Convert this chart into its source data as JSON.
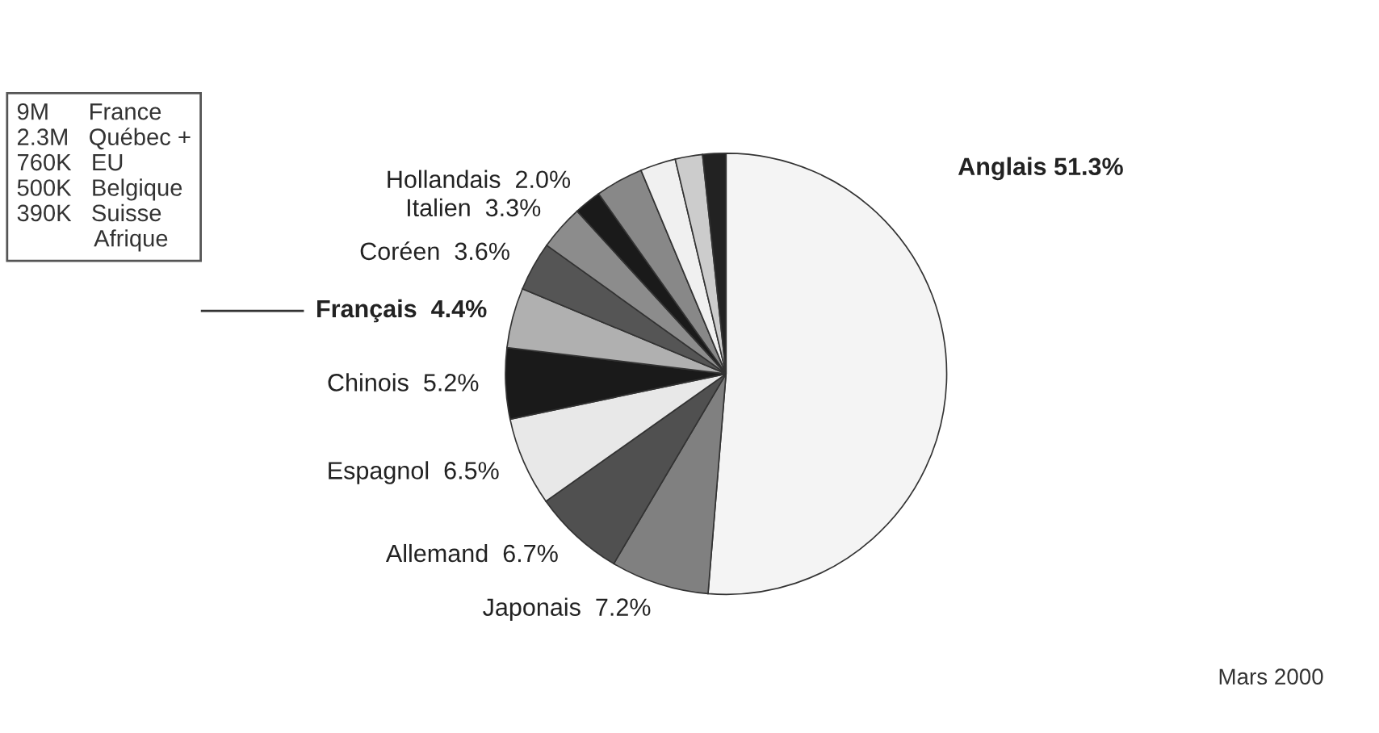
{
  "chart_data": {
    "type": "pie",
    "categories": [
      "Anglais 51.3%",
      "Japonais  7.2%",
      "Allemand  6.7%",
      "Espagnol  6.5%",
      "Chinois  5.2%",
      "Français  4.4%",
      "Coréen  3.6%",
      "Italien  3.3%",
      "Hollandais  2.0%",
      null,
      null,
      null,
      null
    ],
    "values": [
      51.3,
      7.2,
      6.7,
      6.5,
      5.2,
      4.4,
      3.6,
      3.3,
      2.0,
      3.5,
      2.6,
      2.0,
      1.7
    ],
    "colors": [
      "#f4f4f4",
      "#808080",
      "#505050",
      "#e8e8e8",
      "#1a1a1a",
      "#b0b0b0",
      "#555555",
      "#8c8c8c",
      "#1a1a1a",
      "#888888",
      "#f0f0f0",
      "#cccccc",
      "#222222"
    ],
    "annotations": [
      "9M      France\n2.3M   Québec +\n760K   EU\n500K   Belgique\n390K   Suisse\n            Afrique",
      "Mars 2000"
    ]
  }
}
